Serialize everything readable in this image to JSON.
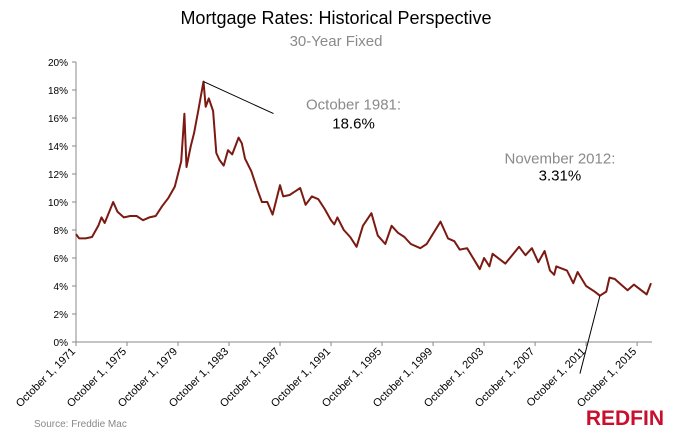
{
  "chart_data": {
    "type": "line",
    "title": "Mortgage Rates: Historical Perspective",
    "subtitle": "30-Year Fixed",
    "source": "Source: Freddie Mac",
    "logo": "REDFIN",
    "color": "#7b1a12",
    "x": [
      "1971-10-01",
      "1972-01-01",
      "1972-07-01",
      "1973-01-01",
      "1973-07-01",
      "1973-10-01",
      "1974-01-01",
      "1974-09-01",
      "1975-01-01",
      "1975-07-01",
      "1976-01-01",
      "1976-07-01",
      "1977-01-01",
      "1977-07-01",
      "1978-01-01",
      "1978-07-01",
      "1979-01-01",
      "1979-07-01",
      "1979-10-01",
      "1980-01-01",
      "1980-04-01",
      "1980-06-01",
      "1980-10-01",
      "1981-01-01",
      "1981-05-01",
      "1981-10-01",
      "1981-12-01",
      "1982-03-01",
      "1982-07-01",
      "1982-10-01",
      "1983-01-01",
      "1983-05-01",
      "1983-09-01",
      "1984-01-01",
      "1984-07-01",
      "1984-10-01",
      "1985-01-01",
      "1985-07-01",
      "1986-01-01",
      "1986-05-01",
      "1986-10-01",
      "1987-03-01",
      "1987-10-01",
      "1988-01-01",
      "1988-07-01",
      "1989-01-01",
      "1989-05-01",
      "1989-10-01",
      "1990-04-01",
      "1990-10-01",
      "1991-04-01",
      "1991-10-01",
      "1992-01-01",
      "1992-04-01",
      "1992-10-01",
      "1993-04-01",
      "1993-10-01",
      "1994-04-01",
      "1994-12-01",
      "1995-06-01",
      "1996-01-01",
      "1996-07-01",
      "1997-01-01",
      "1997-07-01",
      "1998-01-01",
      "1998-10-01",
      "1999-04-01",
      "2000-05-01",
      "2000-12-01",
      "2001-06-01",
      "2001-11-01",
      "2002-06-01",
      "2003-06-01",
      "2003-10-01",
      "2004-03-01",
      "2004-06-01",
      "2005-06-01",
      "2006-07-01",
      "2007-01-01",
      "2007-07-01",
      "2008-01-01",
      "2008-07-01",
      "2008-12-01",
      "2009-04-01",
      "2009-06-01",
      "2010-04-01",
      "2010-10-01",
      "2011-02-01",
      "2011-10-01",
      "2012-06-01",
      "2012-11-01",
      "2013-05-01",
      "2013-08-01",
      "2014-01-01",
      "2014-07-01",
      "2015-01-01",
      "2015-07-01",
      "2016-07-01",
      "2016-11-01"
    ],
    "values": [
      7.7,
      7.4,
      7.4,
      7.5,
      8.3,
      8.9,
      8.5,
      10.0,
      9.3,
      8.9,
      9.0,
      9.0,
      8.7,
      8.9,
      9.0,
      9.7,
      10.3,
      11.1,
      12.0,
      12.9,
      16.3,
      12.5,
      14.0,
      14.9,
      16.5,
      18.6,
      16.8,
      17.4,
      16.5,
      13.5,
      13.0,
      12.6,
      13.7,
      13.4,
      14.6,
      14.2,
      13.1,
      12.2,
      10.8,
      10.0,
      10.0,
      9.1,
      11.2,
      10.4,
      10.5,
      10.8,
      11.0,
      9.8,
      10.4,
      10.2,
      9.5,
      8.7,
      8.4,
      8.9,
      8.0,
      7.5,
      6.8,
      8.3,
      9.2,
      7.6,
      7.0,
      8.3,
      7.8,
      7.5,
      7.0,
      6.7,
      7.0,
      8.6,
      7.4,
      7.2,
      6.6,
      6.7,
      5.2,
      6.0,
      5.4,
      6.3,
      5.6,
      6.8,
      6.2,
      6.7,
      5.7,
      6.5,
      5.1,
      4.8,
      5.4,
      5.1,
      4.2,
      5.0,
      4.0,
      3.6,
      3.31,
      3.6,
      4.6,
      4.5,
      4.1,
      3.7,
      4.1,
      3.4,
      4.2
    ],
    "xlim": [
      "1971-10-01",
      "2016-12-01"
    ],
    "xticks": [
      {
        "value": "1971-10-01",
        "label": "October 1, 1971"
      },
      {
        "value": "1975-10-01",
        "label": "October 1, 1975"
      },
      {
        "value": "1979-10-01",
        "label": "October 1, 1979"
      },
      {
        "value": "1983-10-01",
        "label": "October 1, 1983"
      },
      {
        "value": "1987-10-01",
        "label": "October 1, 1987"
      },
      {
        "value": "1991-10-01",
        "label": "October 1, 1991"
      },
      {
        "value": "1995-10-01",
        "label": "October 1, 1995"
      },
      {
        "value": "1999-10-01",
        "label": "October 1, 1999"
      },
      {
        "value": "2003-10-01",
        "label": "October 1, 2003"
      },
      {
        "value": "2007-10-01",
        "label": "October 1, 2007"
      },
      {
        "value": "2011-10-01",
        "label": "October 1, 2011"
      },
      {
        "value": "2015-10-01",
        "label": "October 1, 2015"
      }
    ],
    "ylim": [
      0,
      20
    ],
    "yticks": [
      {
        "value": 0,
        "label": "0%"
      },
      {
        "value": 2,
        "label": "2%"
      },
      {
        "value": 4,
        "label": "4%"
      },
      {
        "value": 6,
        "label": "6%"
      },
      {
        "value": 8,
        "label": "8%"
      },
      {
        "value": 10,
        "label": "10%"
      },
      {
        "value": 12,
        "label": "12%"
      },
      {
        "value": 14,
        "label": "14%"
      },
      {
        "value": 16,
        "label": "16%"
      },
      {
        "value": 18,
        "label": "18%"
      },
      {
        "value": 20,
        "label": "20%"
      }
    ],
    "annotations": [
      {
        "label": "October 1981:",
        "x": "1981-10-01",
        "value": 18.6,
        "value_label": "18.6%"
      },
      {
        "label": "November 2012:",
        "x": "2012-11-01",
        "value": 3.31,
        "value_label": "3.31%"
      }
    ]
  }
}
